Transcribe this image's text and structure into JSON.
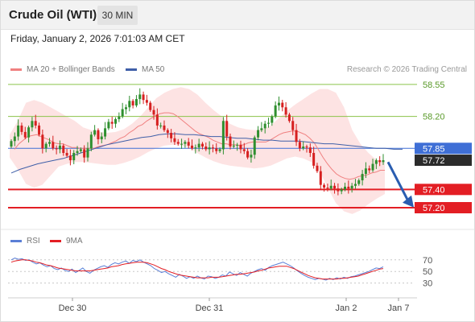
{
  "header": {
    "title": "Crude Oil (WTI)",
    "timeframe": "30 MIN"
  },
  "datetime": "Friday, January 2, 2026 7:01:03 AM CET",
  "legend": {
    "ma20_label": "MA 20 + Bollinger Bands",
    "ma50_label": "MA 50",
    "rsi_label": "RSI",
    "ma9_label": "9MA"
  },
  "copyright": "Research © 2026 Trading Central",
  "colors": {
    "up": "#2f8f2f",
    "down": "#d62020",
    "ma20": "#f08080",
    "ma50": "#3f5fa8",
    "band": "#fde0e0",
    "resistance": "#8bc34a",
    "pivot": "#3f6fd6",
    "support": "#e31e24",
    "rsi": "#5b7fd6",
    "rsi_ma": "#e31e24"
  },
  "chart_data": [
    {
      "type": "candlestick",
      "x": {
        "tick_labels": [
          "Dec 30",
          "Dec 31",
          "Jan 2",
          "Jan 7"
        ]
      },
      "y": {
        "min": 57.05,
        "max": 58.62
      },
      "levels": [
        {
          "value": 58.55,
          "label": "58.55",
          "kind": "resistance"
        },
        {
          "value": 58.2,
          "label": "58.20",
          "kind": "resistance"
        },
        {
          "value": 57.85,
          "label": "57.85",
          "kind": "pivot"
        },
        {
          "value": 57.72,
          "label": "57.72",
          "kind": "last_price"
        },
        {
          "value": 57.4,
          "label": "57.40",
          "kind": "support"
        },
        {
          "value": 57.2,
          "label": "57.20",
          "kind": "support"
        }
      ],
      "closes": [
        57.93,
        57.98,
        58.1,
        58.03,
        57.97,
        58.08,
        58.15,
        58.1,
        58.0,
        57.85,
        57.9,
        57.92,
        57.85,
        57.84,
        57.88,
        57.8,
        57.77,
        57.72,
        57.8,
        57.82,
        57.84,
        57.75,
        57.85,
        58.0,
        58.05,
        57.95,
        57.98,
        58.07,
        58.14,
        58.12,
        58.17,
        58.2,
        58.28,
        58.3,
        58.37,
        58.32,
        58.39,
        58.44,
        58.38,
        58.35,
        58.27,
        58.22,
        58.1,
        58.1,
        58.05,
        58.02,
        57.96,
        57.92,
        57.9,
        57.9,
        57.92,
        57.88,
        57.85,
        57.86,
        57.9,
        57.87,
        57.84,
        57.86,
        57.85,
        57.82,
        57.84,
        58.15,
        57.98,
        57.87,
        57.88,
        57.89,
        57.84,
        57.82,
        57.75,
        57.78,
        57.97,
        58.05,
        58.07,
        58.12,
        58.13,
        58.2,
        58.32,
        58.35,
        58.3,
        58.22,
        58.15,
        58.05,
        57.92,
        57.85,
        57.87,
        57.86,
        57.8,
        57.66,
        57.6,
        57.45,
        57.42,
        57.41,
        57.44,
        57.41,
        57.38,
        57.4,
        57.43,
        57.41,
        57.44,
        57.46,
        57.5,
        57.57,
        57.63,
        57.61,
        57.68,
        57.72,
        57.7,
        57.72
      ],
      "ma20": [
        57.84,
        57.9,
        57.94,
        57.98,
        57.99,
        58.0,
        57.98,
        57.96,
        57.94,
        57.91,
        57.9,
        57.9,
        57.88,
        57.86,
        57.86,
        57.85,
        57.85,
        57.85,
        57.85,
        57.87,
        57.88,
        57.89,
        57.91,
        57.93,
        57.96,
        57.98,
        58.02,
        58.05,
        58.09,
        58.11,
        58.15,
        58.18,
        58.21,
        58.23,
        58.24,
        58.24,
        58.23,
        58.2,
        58.16,
        58.12,
        58.08,
        58.04,
        58.01,
        57.99,
        57.97,
        57.94,
        57.92,
        57.9,
        57.9,
        57.89,
        57.89,
        57.88,
        57.89,
        57.91,
        57.92,
        57.92,
        57.92,
        57.92,
        57.94,
        57.97,
        58.0,
        58.02,
        58.03,
        58.04,
        58.04,
        58.02,
        58.0,
        57.96,
        57.91,
        57.83,
        57.75,
        57.68,
        57.62,
        57.57,
        57.54,
        57.52,
        57.51,
        57.52,
        57.54,
        57.55,
        57.56,
        57.58,
        57.59,
        57.61,
        57.61
      ],
      "ma50": [
        57.58,
        57.62,
        57.65,
        57.68,
        57.7,
        57.72,
        57.74,
        57.77,
        57.8,
        57.83,
        57.86,
        57.89,
        57.91,
        57.93,
        57.95,
        57.97,
        57.98,
        58.0,
        58.01,
        58.01,
        58.0,
        58.0,
        57.99,
        57.98,
        57.98,
        57.97,
        57.96,
        57.96,
        57.95,
        57.94,
        57.94,
        57.93,
        57.93,
        57.93,
        57.92,
        57.91,
        57.9,
        57.9,
        57.89,
        57.88,
        57.87,
        57.86,
        57.85,
        57.85,
        57.84,
        57.84
      ],
      "bb_upper": [
        58.0,
        58.15,
        58.35,
        58.38,
        58.35,
        58.3,
        58.25,
        58.2,
        58.15,
        58.08,
        58.05,
        58.03,
        58.02,
        58.03,
        58.06,
        58.12,
        58.2,
        58.3,
        58.4,
        58.46,
        58.5,
        58.52,
        58.5,
        58.44,
        58.35,
        58.27,
        58.2,
        58.12,
        58.08,
        58.06,
        58.05,
        58.06,
        58.1,
        58.18,
        58.26,
        58.33,
        58.39,
        58.45,
        58.5,
        58.5,
        58.46,
        58.3,
        58.05,
        57.9,
        57.8,
        57.72,
        57.7
      ],
      "bb_lower": [
        57.75,
        57.62,
        57.46,
        57.42,
        57.45,
        57.55,
        57.65,
        57.68,
        57.7,
        57.7,
        57.69,
        57.68,
        57.67,
        57.67,
        57.69,
        57.72,
        57.76,
        57.81,
        57.85,
        57.88,
        57.89,
        57.88,
        57.86,
        57.8,
        57.75,
        57.71,
        57.68,
        57.66,
        57.65,
        57.64,
        57.63,
        57.64,
        57.66,
        57.7,
        57.74,
        57.76,
        57.74,
        57.7,
        57.6,
        57.42,
        57.25,
        57.16,
        57.13,
        57.17,
        57.24,
        57.3,
        57.35
      ],
      "projection": {
        "from": 57.7,
        "to": 57.22
      }
    },
    {
      "type": "line",
      "name": "RSI",
      "y": {
        "min": 10,
        "max": 85,
        "ticks": [
          70,
          50,
          30
        ]
      },
      "rsi": [
        70,
        73,
        71,
        72,
        69,
        70,
        66,
        63,
        65,
        61,
        58,
        60,
        55,
        53,
        56,
        52,
        50,
        54,
        48,
        52,
        56,
        50,
        47,
        52,
        55,
        58,
        60,
        57,
        62,
        65,
        63,
        66,
        68,
        64,
        69,
        67,
        70,
        66,
        63,
        60,
        55,
        52,
        48,
        50,
        46,
        43,
        40,
        45,
        42,
        38,
        41,
        38,
        42,
        39,
        37,
        42,
        41,
        38,
        40,
        44,
        42,
        49,
        46,
        43,
        48,
        45,
        42,
        47,
        50,
        53,
        55,
        52,
        57,
        60,
        62,
        64,
        66,
        63,
        60,
        56,
        51,
        47,
        43,
        40,
        38,
        36,
        38,
        37,
        35,
        38,
        36,
        39,
        37,
        40,
        38,
        41,
        42,
        44,
        46,
        48,
        50,
        53,
        56,
        55,
        58
      ],
      "rsi_ma": [
        66,
        68,
        69,
        70,
        70,
        69,
        68,
        66,
        65,
        63,
        61,
        60,
        58,
        56,
        55,
        54,
        53,
        52,
        51,
        51,
        51,
        51,
        51,
        52,
        53,
        54,
        55,
        56,
        58,
        59,
        60,
        62,
        63,
        64,
        65,
        66,
        66,
        66,
        65,
        63,
        61,
        58,
        55,
        53,
        50,
        48,
        46,
        44,
        43,
        42,
        41,
        40,
        39,
        39,
        39,
        39,
        40,
        40,
        40,
        41,
        42,
        43,
        44,
        45,
        45,
        46,
        47,
        48,
        49,
        51,
        52,
        54,
        56,
        57,
        58,
        59,
        59,
        59,
        57,
        55,
        52,
        49,
        46,
        43,
        41,
        39,
        38,
        37,
        37,
        37,
        37,
        37,
        38,
        38,
        39,
        40,
        41,
        42,
        44,
        46,
        48,
        50,
        52,
        54,
        55
      ]
    }
  ]
}
